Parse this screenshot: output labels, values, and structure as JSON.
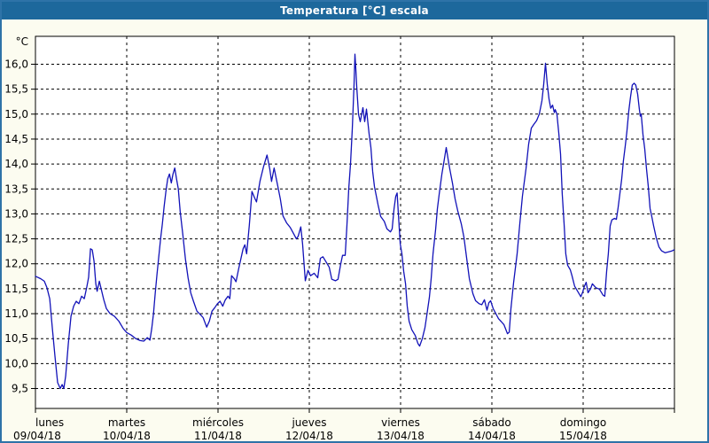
{
  "window": {
    "title": "Temperatura [°C] escala"
  },
  "colors": {
    "title_bar": "#1d689c",
    "window_border": "#2e73a8",
    "content_bg": "#fcfcf0",
    "plot_bg": "#ffffff",
    "plot_border": "#000000",
    "grid": "#000000",
    "line": "#1212b8",
    "text": "#000000"
  },
  "chart_data": {
    "type": "line",
    "title": "Temperatura [°C] escala",
    "ylabel": "°C",
    "y_unit_label": "°C",
    "ylim": [
      9.5,
      16.0
    ],
    "y_step": 0.5,
    "y_tick_labels": [
      "9,5",
      "10,0",
      "10,5",
      "11,0",
      "11,5",
      "12,0",
      "12,5",
      "13,0",
      "13,5",
      "14,0",
      "14,5",
      "15,0",
      "15,5",
      "16,0"
    ],
    "grid": "dashed",
    "x_unit": "days",
    "xlim_days": [
      0,
      7
    ],
    "x_days": [
      {
        "name": "lunes",
        "date": "09/04/18"
      },
      {
        "name": "martes",
        "date": "10/04/18"
      },
      {
        "name": "miércoles",
        "date": "11/04/18"
      },
      {
        "name": "jueves",
        "date": "12/04/18"
      },
      {
        "name": "viernes",
        "date": "13/04/18"
      },
      {
        "name": "sábado",
        "date": "14/04/18"
      },
      {
        "name": "domingo",
        "date": "15/04/18"
      }
    ],
    "series": [
      {
        "name": "Temperatura",
        "points": [
          [
            0.0,
            11.75
          ],
          [
            0.058,
            11.7
          ],
          [
            0.097,
            11.65
          ],
          [
            0.126,
            11.52
          ],
          [
            0.156,
            11.3
          ],
          [
            0.185,
            10.7
          ],
          [
            0.214,
            10.15
          ],
          [
            0.243,
            9.62
          ],
          [
            0.272,
            9.5
          ],
          [
            0.292,
            9.58
          ],
          [
            0.311,
            9.5
          ],
          [
            0.331,
            9.75
          ],
          [
            0.36,
            10.4
          ],
          [
            0.389,
            10.95
          ],
          [
            0.418,
            11.15
          ],
          [
            0.447,
            11.25
          ],
          [
            0.476,
            11.2
          ],
          [
            0.506,
            11.35
          ],
          [
            0.535,
            11.3
          ],
          [
            0.564,
            11.55
          ],
          [
            0.583,
            11.73
          ],
          [
            0.603,
            12.3
          ],
          [
            0.622,
            12.28
          ],
          [
            0.642,
            12.05
          ],
          [
            0.661,
            11.6
          ],
          [
            0.676,
            11.45
          ],
          [
            0.7,
            11.65
          ],
          [
            0.719,
            11.5
          ],
          [
            0.749,
            11.28
          ],
          [
            0.778,
            11.1
          ],
          [
            0.817,
            11.0
          ],
          [
            0.865,
            10.95
          ],
          [
            0.914,
            10.85
          ],
          [
            0.962,
            10.7
          ],
          [
            1.001,
            10.62
          ],
          [
            1.05,
            10.57
          ],
          [
            1.099,
            10.5
          ],
          [
            1.147,
            10.46
          ],
          [
            1.186,
            10.45
          ],
          [
            1.225,
            10.52
          ],
          [
            1.254,
            10.47
          ],
          [
            1.274,
            10.7
          ],
          [
            1.293,
            11.0
          ],
          [
            1.312,
            11.4
          ],
          [
            1.332,
            11.8
          ],
          [
            1.351,
            12.15
          ],
          [
            1.371,
            12.5
          ],
          [
            1.39,
            12.8
          ],
          [
            1.41,
            13.15
          ],
          [
            1.429,
            13.45
          ],
          [
            1.449,
            13.7
          ],
          [
            1.468,
            13.8
          ],
          [
            1.488,
            13.62
          ],
          [
            1.507,
            13.8
          ],
          [
            1.526,
            13.92
          ],
          [
            1.546,
            13.7
          ],
          [
            1.565,
            13.5
          ],
          [
            1.585,
            13.05
          ],
          [
            1.614,
            12.6
          ],
          [
            1.643,
            12.1
          ],
          [
            1.672,
            11.72
          ],
          [
            1.701,
            11.42
          ],
          [
            1.731,
            11.25
          ],
          [
            1.769,
            11.05
          ],
          [
            1.808,
            10.98
          ],
          [
            1.837,
            10.92
          ],
          [
            1.876,
            10.73
          ],
          [
            1.905,
            10.85
          ],
          [
            1.934,
            11.05
          ],
          [
            1.964,
            11.12
          ],
          [
            1.993,
            11.2
          ],
          [
            2.022,
            11.25
          ],
          [
            2.051,
            11.15
          ],
          [
            2.081,
            11.28
          ],
          [
            2.11,
            11.35
          ],
          [
            2.129,
            11.3
          ],
          [
            2.149,
            11.76
          ],
          [
            2.178,
            11.7
          ],
          [
            2.197,
            11.64
          ],
          [
            2.226,
            11.9
          ],
          [
            2.246,
            12.06
          ],
          [
            2.275,
            12.3
          ],
          [
            2.294,
            12.38
          ],
          [
            2.314,
            12.2
          ],
          [
            2.343,
            12.77
          ],
          [
            2.372,
            13.45
          ],
          [
            2.401,
            13.32
          ],
          [
            2.421,
            13.24
          ],
          [
            2.46,
            13.66
          ],
          [
            2.499,
            13.95
          ],
          [
            2.537,
            14.18
          ],
          [
            2.567,
            13.9
          ],
          [
            2.586,
            13.65
          ],
          [
            2.615,
            13.92
          ],
          [
            2.654,
            13.56
          ],
          [
            2.683,
            13.3
          ],
          [
            2.712,
            12.96
          ],
          [
            2.751,
            12.82
          ],
          [
            2.79,
            12.73
          ],
          [
            2.829,
            12.6
          ],
          [
            2.858,
            12.5
          ],
          [
            2.878,
            12.55
          ],
          [
            2.907,
            12.74
          ],
          [
            2.926,
            12.4
          ],
          [
            2.956,
            11.66
          ],
          [
            2.985,
            11.87
          ],
          [
            3.014,
            11.76
          ],
          [
            3.053,
            11.81
          ],
          [
            3.092,
            11.72
          ],
          [
            3.121,
            12.11
          ],
          [
            3.15,
            12.14
          ],
          [
            3.189,
            12.02
          ],
          [
            3.218,
            11.93
          ],
          [
            3.247,
            11.69
          ],
          [
            3.286,
            11.66
          ],
          [
            3.315,
            11.69
          ],
          [
            3.344,
            11.99
          ],
          [
            3.364,
            12.17
          ],
          [
            3.393,
            12.17
          ],
          [
            3.412,
            12.75
          ],
          [
            3.432,
            13.5
          ],
          [
            3.451,
            14.0
          ],
          [
            3.471,
            14.7
          ],
          [
            3.48,
            15.1
          ],
          [
            3.49,
            15.6
          ],
          [
            3.5,
            16.2
          ],
          [
            3.51,
            15.9
          ],
          [
            3.519,
            15.55
          ],
          [
            3.539,
            15.0
          ],
          [
            3.558,
            14.85
          ],
          [
            3.587,
            15.13
          ],
          [
            3.607,
            14.85
          ],
          [
            3.626,
            15.1
          ],
          [
            3.655,
            14.6
          ],
          [
            3.675,
            14.33
          ],
          [
            3.694,
            13.85
          ],
          [
            3.714,
            13.55
          ],
          [
            3.753,
            13.18
          ],
          [
            3.782,
            12.95
          ],
          [
            3.821,
            12.85
          ],
          [
            3.85,
            12.7
          ],
          [
            3.889,
            12.64
          ],
          [
            3.908,
            12.7
          ],
          [
            3.928,
            13.1
          ],
          [
            3.947,
            13.35
          ],
          [
            3.962,
            13.42
          ],
          [
            3.976,
            13.0
          ],
          [
            3.996,
            12.4
          ],
          [
            4.015,
            12.2
          ],
          [
            4.034,
            11.85
          ],
          [
            4.054,
            11.6
          ],
          [
            4.073,
            11.15
          ],
          [
            4.093,
            10.85
          ],
          [
            4.122,
            10.68
          ],
          [
            4.161,
            10.56
          ],
          [
            4.19,
            10.4
          ],
          [
            4.209,
            10.35
          ],
          [
            4.238,
            10.5
          ],
          [
            4.267,
            10.72
          ],
          [
            4.287,
            10.97
          ],
          [
            4.316,
            11.33
          ],
          [
            4.335,
            11.7
          ],
          [
            4.355,
            12.2
          ],
          [
            4.384,
            12.7
          ],
          [
            4.403,
            13.1
          ],
          [
            4.423,
            13.4
          ],
          [
            4.452,
            13.8
          ],
          [
            4.471,
            14.0
          ],
          [
            4.5,
            14.33
          ],
          [
            4.52,
            14.1
          ],
          [
            4.539,
            13.9
          ],
          [
            4.568,
            13.62
          ],
          [
            4.597,
            13.3
          ],
          [
            4.626,
            13.06
          ],
          [
            4.665,
            12.8
          ],
          [
            4.694,
            12.53
          ],
          [
            4.723,
            12.12
          ],
          [
            4.753,
            11.7
          ],
          [
            4.792,
            11.4
          ],
          [
            4.821,
            11.26
          ],
          [
            4.86,
            11.2
          ],
          [
            4.889,
            11.18
          ],
          [
            4.918,
            11.28
          ],
          [
            4.947,
            11.07
          ],
          [
            4.967,
            11.22
          ],
          [
            4.986,
            11.26
          ],
          [
            5.015,
            11.1
          ],
          [
            5.044,
            11.0
          ],
          [
            5.073,
            10.9
          ],
          [
            5.103,
            10.84
          ],
          [
            5.132,
            10.78
          ],
          [
            5.151,
            10.69
          ],
          [
            5.171,
            10.6
          ],
          [
            5.19,
            10.63
          ],
          [
            5.209,
            11.1
          ],
          [
            5.238,
            11.62
          ],
          [
            5.277,
            12.2
          ],
          [
            5.306,
            12.8
          ],
          [
            5.335,
            13.36
          ],
          [
            5.374,
            13.9
          ],
          [
            5.403,
            14.4
          ],
          [
            5.432,
            14.72
          ],
          [
            5.461,
            14.8
          ],
          [
            5.49,
            14.87
          ],
          [
            5.519,
            15.0
          ],
          [
            5.549,
            15.27
          ],
          [
            5.568,
            15.6
          ],
          [
            5.587,
            16.02
          ],
          [
            5.607,
            15.6
          ],
          [
            5.626,
            15.3
          ],
          [
            5.645,
            15.12
          ],
          [
            5.665,
            15.18
          ],
          [
            5.684,
            15.03
          ],
          [
            5.694,
            15.09
          ],
          [
            5.713,
            15.0
          ],
          [
            5.733,
            14.62
          ],
          [
            5.752,
            14.2
          ],
          [
            5.771,
            13.4
          ],
          [
            5.791,
            12.8
          ],
          [
            5.81,
            12.2
          ],
          [
            5.83,
            11.97
          ],
          [
            5.859,
            11.88
          ],
          [
            5.878,
            11.76
          ],
          [
            5.907,
            11.55
          ],
          [
            5.946,
            11.43
          ],
          [
            5.975,
            11.34
          ],
          [
            5.994,
            11.43
          ],
          [
            6.014,
            11.55
          ],
          [
            6.033,
            11.63
          ],
          [
            6.053,
            11.42
          ],
          [
            6.082,
            11.5
          ],
          [
            6.101,
            11.6
          ],
          [
            6.14,
            11.52
          ],
          [
            6.179,
            11.49
          ],
          [
            6.218,
            11.37
          ],
          [
            6.237,
            11.35
          ],
          [
            6.257,
            11.85
          ],
          [
            6.276,
            12.2
          ],
          [
            6.296,
            12.76
          ],
          [
            6.315,
            12.88
          ],
          [
            6.344,
            12.91
          ],
          [
            6.364,
            12.89
          ],
          [
            6.383,
            13.12
          ],
          [
            6.402,
            13.4
          ],
          [
            6.422,
            13.7
          ],
          [
            6.441,
            14.06
          ],
          [
            6.461,
            14.36
          ],
          [
            6.48,
            14.66
          ],
          [
            6.499,
            15.05
          ],
          [
            6.519,
            15.35
          ],
          [
            6.538,
            15.58
          ],
          [
            6.558,
            15.62
          ],
          [
            6.577,
            15.58
          ],
          [
            6.597,
            15.4
          ],
          [
            6.616,
            15.1
          ],
          [
            6.626,
            14.96
          ],
          [
            6.636,
            15.0
          ],
          [
            6.655,
            14.59
          ],
          [
            6.675,
            14.3
          ],
          [
            6.694,
            13.9
          ],
          [
            6.714,
            13.55
          ],
          [
            6.733,
            13.11
          ],
          [
            6.752,
            12.94
          ],
          [
            6.772,
            12.76
          ],
          [
            6.801,
            12.52
          ],
          [
            6.83,
            12.34
          ],
          [
            6.859,
            12.26
          ],
          [
            6.898,
            12.22
          ],
          [
            6.937,
            12.24
          ],
          [
            6.976,
            12.26
          ],
          [
            6.996,
            12.28
          ]
        ]
      }
    ]
  }
}
